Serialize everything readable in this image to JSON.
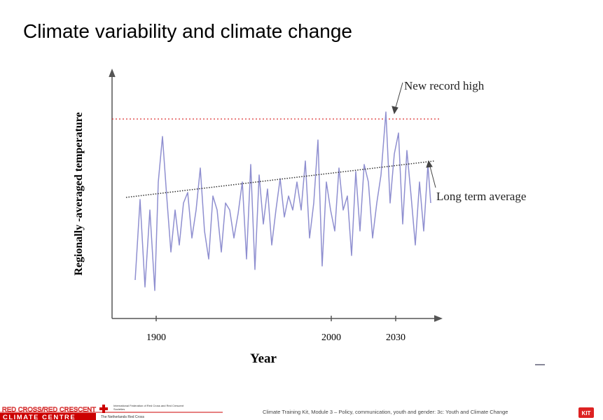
{
  "title": "Climate variability and climate change",
  "chart": {
    "y_axis_label": "Regionally -averaged temperature",
    "x_axis_label": "Year",
    "x_ticks": [
      1900,
      2000,
      2030
    ],
    "annotations": [
      "New record high",
      "Long term average"
    ]
  },
  "footer": {
    "logo_line1": "RED CROSS/RED CRESCENT",
    "logo_line2": "CLIMATE CENTRE",
    "partner1": "International Federation of Red Cross and Red Crescent Societies",
    "partner2": "The Netherlands Red Cross",
    "caption": "Climate Training Kit, Module 3 – Policy, communication, youth and gender: 3c: Youth and Climate Change",
    "right_logo": "KIT"
  }
}
